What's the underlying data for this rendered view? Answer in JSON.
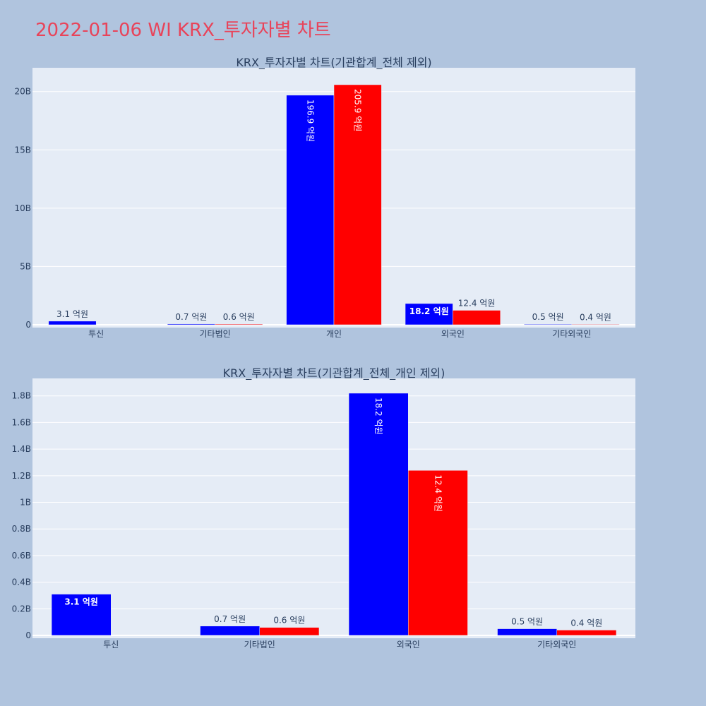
{
  "page_title": "2022-01-06 WI KRX_투자자별 차트",
  "colors": {
    "series_a": "#0000ff",
    "series_b": "#ff0000",
    "plot_bg": "#e5ecf6",
    "page_bg": "#b0c4de"
  },
  "chart_data": [
    {
      "type": "bar",
      "title": "KRX_투자자별 차트(기관합계_전체 제외)",
      "categories": [
        "투신",
        "기타법인",
        "개인",
        "외국인",
        "기타외국인"
      ],
      "series": [
        {
          "values": [
            310000000,
            70000000,
            19690000000,
            1820000000,
            50000000
          ],
          "labels": [
            "3.1 억원",
            "0.7 억원",
            "196.9 억원",
            "18.2 억원",
            "0.5 억원"
          ]
        },
        {
          "values": [
            0,
            60000000,
            20590000000,
            1240000000,
            40000000
          ],
          "labels": [
            "",
            "0.6 억원",
            "205.9 억원",
            "12.4 억원",
            "0.4 억원"
          ]
        }
      ],
      "ylim": [
        0,
        21800000000
      ],
      "yticks": [
        0,
        5000000000,
        10000000000,
        15000000000,
        20000000000
      ],
      "yticklabels": [
        "0",
        "5B",
        "10B",
        "15B",
        "20B"
      ],
      "grid": true
    },
    {
      "type": "bar",
      "title": "KRX_투자자별 차트(기관합계_전체_개인 제외)",
      "categories": [
        "투신",
        "기타법인",
        "외국인",
        "기타외국인"
      ],
      "series": [
        {
          "values": [
            310000000,
            70000000,
            1820000000,
            50000000
          ],
          "labels": [
            "3.1 억원",
            "0.7 억원",
            "18.2 억원",
            "0.5 억원"
          ]
        },
        {
          "values": [
            0,
            60000000,
            1240000000,
            40000000
          ],
          "labels": [
            "",
            "0.6 억원",
            "12.4 억원",
            "0.4 억원"
          ]
        }
      ],
      "ylim": [
        0,
        1910000000
      ],
      "yticks": [
        0,
        200000000,
        400000000,
        600000000,
        800000000,
        1000000000,
        1200000000,
        1400000000,
        1600000000,
        1800000000
      ],
      "yticklabels": [
        "0",
        "0.2B",
        "0.4B",
        "0.6B",
        "0.8B",
        "1B",
        "1.2B",
        "1.4B",
        "1.6B",
        "1.8B"
      ],
      "grid": true
    }
  ]
}
